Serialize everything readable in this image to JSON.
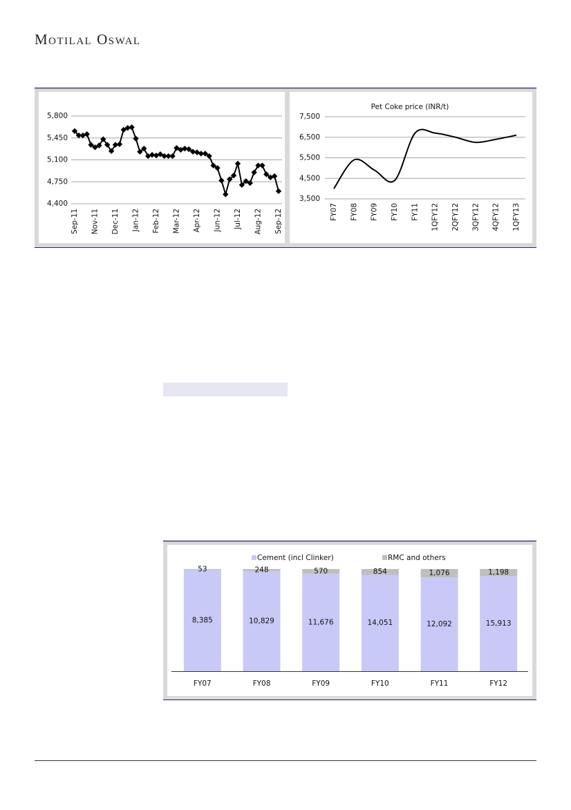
{
  "header": {
    "brand": "Motilal Oswal"
  },
  "chart_data": [
    {
      "type": "line",
      "marker": "diamond",
      "color": "#000000",
      "grid": true,
      "categories": [
        "Sep-11",
        null,
        null,
        null,
        null,
        "Nov-11",
        null,
        null,
        null,
        null,
        "Dec-11",
        null,
        null,
        null,
        null,
        "Jan-12",
        null,
        null,
        null,
        null,
        "Feb-12",
        null,
        null,
        null,
        null,
        "Mar-12",
        null,
        null,
        null,
        null,
        "Apr-12",
        null,
        null,
        null,
        null,
        "Jun-12",
        null,
        null,
        null,
        null,
        "Jul-12",
        null,
        null,
        null,
        null,
        "Aug-12",
        null,
        null,
        null,
        null,
        "Sep-12"
      ],
      "values": [
        5560,
        5490,
        5490,
        5510,
        5340,
        5300,
        5330,
        5430,
        5340,
        5240,
        5340,
        5350,
        5580,
        5610,
        5620,
        5440,
        5230,
        5280,
        5160,
        5180,
        5170,
        5190,
        5160,
        5160,
        5160,
        5290,
        5260,
        5280,
        5270,
        5230,
        5220,
        5200,
        5200,
        5160,
        5010,
        4970,
        4770,
        4550,
        4790,
        4850,
        5040,
        4700,
        4760,
        4730,
        4900,
        5010,
        5010,
        4870,
        4820,
        4840,
        4600
      ],
      "ylim": [
        4400,
        5800
      ],
      "yticks": [
        {
          "value": 4400,
          "label": "4,400"
        },
        {
          "value": 4750,
          "label": "4,750"
        },
        {
          "value": 5100,
          "label": "5,100"
        },
        {
          "value": 5450,
          "label": "5,450"
        },
        {
          "value": 5800,
          "label": "5,800"
        }
      ]
    },
    {
      "type": "line",
      "smooth": true,
      "color": "#000000",
      "grid": true,
      "title": "Pet Coke price (INR/t)",
      "categories": [
        "FY07",
        "FY08",
        "FY09",
        "FY10",
        "FY11",
        "1QFY12",
        "2QFY12",
        "3QFY12",
        "4QFY12",
        "1QFY13"
      ],
      "values": [
        4000,
        5400,
        4900,
        4400,
        6700,
        6700,
        6500,
        6250,
        6400,
        6600
      ],
      "ylim": [
        3500,
        7500
      ],
      "yticks": [
        {
          "value": 3500,
          "label": "3,500"
        },
        {
          "value": 4500,
          "label": "4,500"
        },
        {
          "value": 5500,
          "label": "5,500"
        },
        {
          "value": 6500,
          "label": "6,500"
        },
        {
          "value": 7500,
          "label": "7,500"
        }
      ]
    },
    {
      "type": "stacked_percent_bar",
      "legend": "top",
      "categories": [
        "FY07",
        "FY08",
        "FY09",
        "FY10",
        "FY11",
        "FY12"
      ],
      "series": [
        {
          "name": "Cement (incl Clinker)",
          "color": "#c9c9f7",
          "values": [
            8385,
            10829,
            11676,
            14051,
            12092,
            15913
          ],
          "value_labels": [
            "8,385",
            "10,829",
            "11,676",
            "14,051",
            "12,092",
            "15,913"
          ]
        },
        {
          "name": "RMC and others",
          "color": "#bfbfbf",
          "values": [
            53,
            248,
            570,
            854,
            1076,
            1198
          ],
          "value_labels": [
            "53",
            "248",
            "570",
            "854",
            "1,076",
            "1,198"
          ]
        }
      ]
    }
  ]
}
